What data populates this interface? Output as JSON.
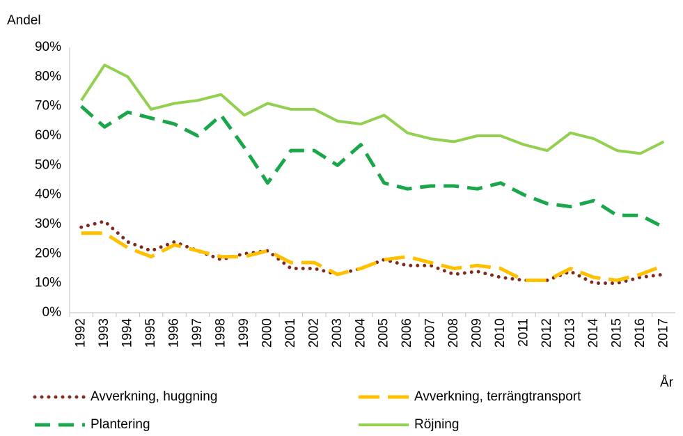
{
  "chart_data": {
    "type": "line",
    "y_label": "Andel",
    "x_label": "År",
    "categories": [
      "1992",
      "1993",
      "1994",
      "1995",
      "1996",
      "1997",
      "1998",
      "1999",
      "2000",
      "2001",
      "2002",
      "2003",
      "2004",
      "2005",
      "2006",
      "2007",
      "2008",
      "2009",
      "2010",
      "2011",
      "2012",
      "2013",
      "2014",
      "2015",
      "2016",
      "2017"
    ],
    "series": [
      {
        "name": "Avverkning, huggning",
        "color": "#7f2b1f",
        "line_style": "dotted",
        "values": [
          29,
          31,
          24,
          21,
          24,
          21,
          18,
          20,
          21,
          15,
          15,
          13,
          15,
          18,
          16,
          16,
          13,
          14,
          12,
          11,
          11,
          14,
          10,
          10,
          12,
          13
        ]
      },
      {
        "name": "Avverkning, terrängtransport",
        "color": "#ffc000",
        "line_style": "long-dash",
        "values": [
          27,
          27,
          22,
          19,
          23,
          21,
          19,
          19,
          21,
          17,
          17,
          13,
          15,
          18,
          19,
          17,
          15,
          16,
          15,
          11,
          11,
          15,
          12,
          11,
          13,
          16
        ]
      },
      {
        "name": "Plantering",
        "color": "#1aa64a",
        "line_style": "dashed",
        "values": [
          70,
          63,
          68,
          66,
          64,
          60,
          67,
          56,
          44,
          55,
          55,
          50,
          57,
          44,
          42,
          43,
          43,
          42,
          44,
          40,
          37,
          36,
          38,
          33,
          33,
          29
        ]
      },
      {
        "name": "Röjning",
        "color": "#92d050",
        "line_style": "solid",
        "values": [
          72,
          84,
          80,
          69,
          71,
          72,
          74,
          67,
          71,
          69,
          69,
          65,
          64,
          67,
          61,
          59,
          58,
          60,
          60,
          57,
          55,
          61,
          59,
          55,
          54,
          58
        ]
      }
    ],
    "ylim": [
      0,
      90
    ],
    "yticks": [
      {
        "value": 0,
        "label": "0%"
      },
      {
        "value": 10,
        "label": "10%"
      },
      {
        "value": 20,
        "label": "20%"
      },
      {
        "value": 30,
        "label": "30%"
      },
      {
        "value": 40,
        "label": "40%"
      },
      {
        "value": 50,
        "label": "50%"
      },
      {
        "value": 60,
        "label": "60%"
      },
      {
        "value": 70,
        "label": "70%"
      },
      {
        "value": 80,
        "label": "80%"
      },
      {
        "value": 90,
        "label": "90%"
      }
    ],
    "grid": false,
    "legend": "bottom"
  }
}
